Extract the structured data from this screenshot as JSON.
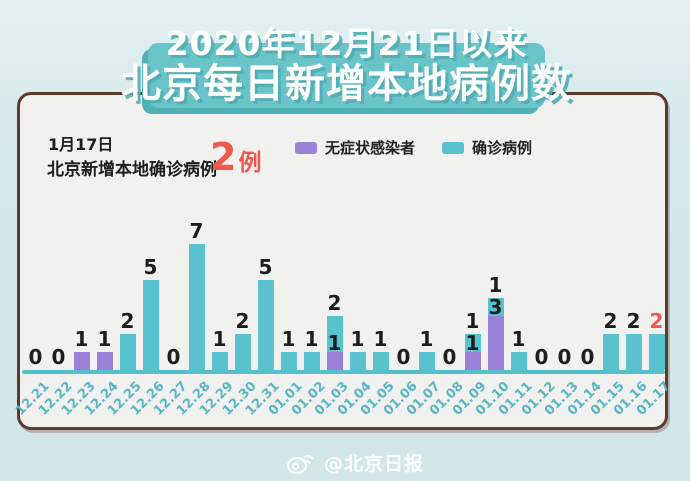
{
  "title": {
    "line1": "2020年12月21日以来",
    "line2": "北京每日新增本地病例数"
  },
  "panel_header": {
    "date_line": "1月17日",
    "label": "北京新增本地确诊病例",
    "count_number": "2",
    "count_unit": "例"
  },
  "legend": [
    {
      "label": "无症状感染者",
      "color": "#9b80d8"
    },
    {
      "label": "确诊病例",
      "color": "#58c3ce"
    }
  ],
  "watermark": {
    "text": "@北京日报"
  },
  "colors": {
    "page_bg": "#d5e8ea",
    "banner_bg": "#69c4c9",
    "banner_shadow": "#4fb0b5",
    "panel_bg": "#f1f1ef",
    "panel_border": "#5e392c",
    "bar_confirmed": "#58c3ce",
    "bar_asymptomatic": "#9b80d8",
    "axis": "#55c0cb",
    "date_label": "#57b5c5",
    "value_label": "#1d1d1d",
    "highlight_red": "#f1574d"
  },
  "chart_data": {
    "type": "bar",
    "stacked": true,
    "grid": false,
    "legend_position": "top",
    "ylim": [
      0,
      7
    ],
    "categories": [
      "12.21",
      "12.22",
      "12.23",
      "12.24",
      "12.25",
      "12.26",
      "12.27",
      "12.28",
      "12.29",
      "12.30",
      "12.31",
      "01.01",
      "01.02",
      "01.03",
      "01.04",
      "01.05",
      "01.06",
      "01.07",
      "01.08",
      "01.09",
      "01.10",
      "01.11",
      "01.12",
      "01.13",
      "01.14",
      "01.15",
      "01.16",
      "01.17"
    ],
    "series": [
      {
        "name": "无症状感染者",
        "color": "#9b80d8",
        "values": [
          0,
          0,
          1,
          1,
          0,
          0,
          0,
          0,
          0,
          0,
          0,
          0,
          0,
          1,
          0,
          0,
          0,
          0,
          0,
          1,
          3,
          0,
          0,
          0,
          0,
          0,
          0,
          0
        ]
      },
      {
        "name": "确诊病例",
        "color": "#58c3ce",
        "values": [
          0,
          0,
          0,
          0,
          2,
          5,
          0,
          7,
          1,
          2,
          5,
          1,
          1,
          2,
          1,
          1,
          0,
          1,
          0,
          1,
          1,
          1,
          0,
          0,
          0,
          2,
          2,
          2
        ]
      }
    ],
    "bar_top_labels": [
      "0",
      "0",
      "1",
      "1",
      "2",
      "5",
      "0",
      "7",
      "1",
      "2",
      "5",
      "1",
      "1",
      "2",
      "1",
      "1",
      "0",
      "1",
      "0",
      "1",
      "1",
      "1",
      "0",
      "0",
      "0",
      "2",
      "2",
      "2"
    ],
    "bar_mid_labels": {
      "13": "1",
      "19": "1",
      "20": "3"
    },
    "last_label_color": "#f1574d"
  }
}
